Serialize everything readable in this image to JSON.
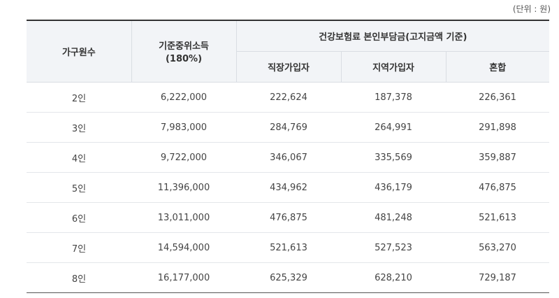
{
  "unit_label": "(단위 : 원)",
  "header": {
    "household": "가구원수",
    "median_income": "기준중위소득",
    "median_income_pct": "(180%)",
    "premium_group": "건강보험료 본인부담금(고지금액 기준)",
    "employee": "직장가입자",
    "regional": "지역가입자",
    "mixed": "혼합"
  },
  "rows": [
    {
      "household": "2인",
      "income": "6,222,000",
      "employee": "222,624",
      "regional": "187,378",
      "mixed": "226,361"
    },
    {
      "household": "3인",
      "income": "7,983,000",
      "employee": "284,769",
      "regional": "264,991",
      "mixed": "291,898"
    },
    {
      "household": "4인",
      "income": "9,722,000",
      "employee": "346,067",
      "regional": "335,569",
      "mixed": "359,887"
    },
    {
      "household": "5인",
      "income": "11,396,000",
      "employee": "434,962",
      "regional": "436,179",
      "mixed": "476,875"
    },
    {
      "household": "6인",
      "income": "13,011,000",
      "employee": "476,875",
      "regional": "481,248",
      "mixed": "521,613"
    },
    {
      "household": "7인",
      "income": "14,594,000",
      "employee": "521,613",
      "regional": "527,523",
      "mixed": "563,270"
    },
    {
      "household": "8인",
      "income": "16,177,000",
      "employee": "625,329",
      "regional": "628,210",
      "mixed": "729,187"
    }
  ]
}
